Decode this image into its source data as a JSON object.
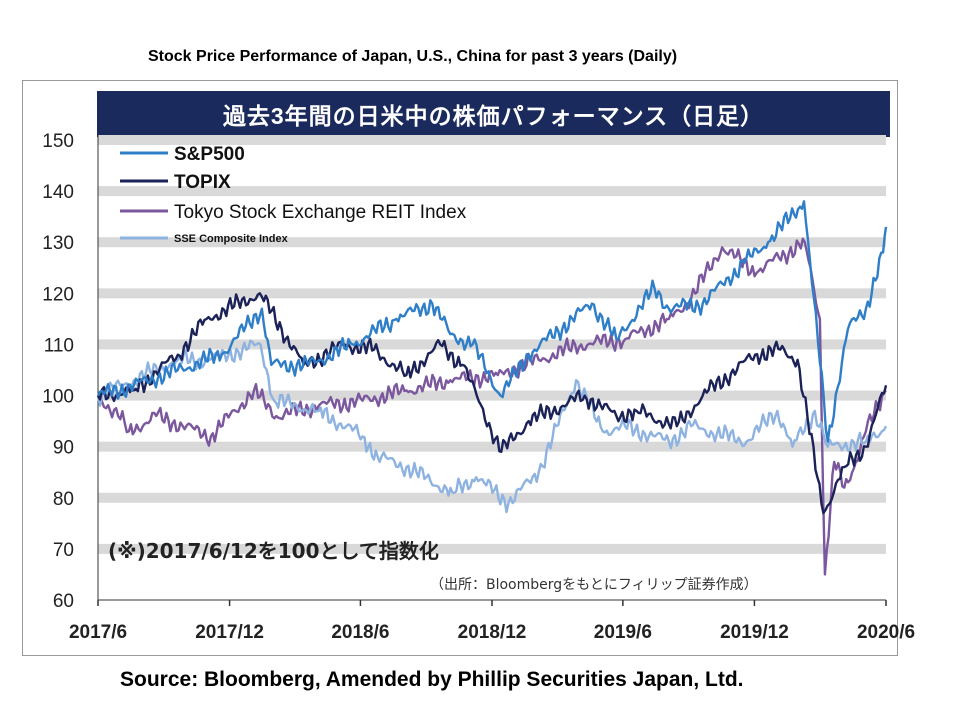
{
  "page": {
    "top_title": "Stock Price Performance of Japan, U.S., China for past 3 years (Daily)",
    "banner_title": "過去3年間の日米中の株価パフォーマンス（日足）",
    "source": "Source: Bloomberg, Amended by Phillip Securities Japan, Ltd."
  },
  "chart_data": {
    "type": "line",
    "title": "過去3年間の日米中の株価パフォーマンス（日足）",
    "note_base": "(※)2017/6/12を100として指数化",
    "note_source": "（出所：Bloombergをもとにフィリップ証券作成）",
    "x_ticks": [
      "2017/6",
      "2017/12",
      "2018/6",
      "2018/12",
      "2019/6",
      "2019/12",
      "2020/6"
    ],
    "x_range": [
      "2017-06-12",
      "2020-06-12"
    ],
    "ylim": [
      60,
      150
    ],
    "y_ticks": [
      60,
      70,
      80,
      90,
      100,
      110,
      120,
      130,
      140,
      150
    ],
    "grid": "horizontal gray bands",
    "legend": "top-left",
    "series": [
      {
        "name": "S&P500",
        "color": "#2f7ec8",
        "points": [
          [
            "2017-06-12",
            100
          ],
          [
            "2017-08-01",
            102
          ],
          [
            "2017-10-01",
            105
          ],
          [
            "2017-12-01",
            108
          ],
          [
            "2018-01-26",
            117
          ],
          [
            "2018-02-08",
            106
          ],
          [
            "2018-04-01",
            106
          ],
          [
            "2018-06-01",
            110
          ],
          [
            "2018-08-01",
            115
          ],
          [
            "2018-09-20",
            118
          ],
          [
            "2018-10-15",
            112
          ],
          [
            "2018-11-15",
            110
          ],
          [
            "2018-12-24",
            100
          ],
          [
            "2019-02-01",
            108
          ],
          [
            "2019-04-30",
            118
          ],
          [
            "2019-06-03",
            111
          ],
          [
            "2019-07-26",
            121
          ],
          [
            "2019-08-15",
            117
          ],
          [
            "2019-10-01",
            118
          ],
          [
            "2019-11-28",
            126
          ],
          [
            "2019-12-31",
            130
          ],
          [
            "2020-02-19",
            138
          ],
          [
            "2020-03-23",
            91
          ],
          [
            "2020-04-20",
            113
          ],
          [
            "2020-05-15",
            117
          ],
          [
            "2020-06-08",
            128
          ],
          [
            "2020-06-12",
            133
          ]
        ]
      },
      {
        "name": "TOPIX",
        "color": "#1b2257",
        "points": [
          [
            "2017-06-12",
            100
          ],
          [
            "2017-08-01",
            101
          ],
          [
            "2017-10-01",
            108
          ],
          [
            "2017-11-10",
            115
          ],
          [
            "2018-01-23",
            120
          ],
          [
            "2018-03-25",
            106
          ],
          [
            "2018-05-21",
            110
          ],
          [
            "2018-07-01",
            109
          ],
          [
            "2018-08-15",
            104
          ],
          [
            "2018-10-01",
            110
          ],
          [
            "2018-11-01",
            106
          ],
          [
            "2018-12-25",
            89
          ],
          [
            "2019-02-01",
            95
          ],
          [
            "2019-04-20",
            100
          ],
          [
            "2019-06-03",
            96
          ],
          [
            "2019-07-01",
            97
          ],
          [
            "2019-08-26",
            94
          ],
          [
            "2019-10-01",
            100
          ],
          [
            "2019-12-13",
            108
          ],
          [
            "2020-01-17",
            109
          ],
          [
            "2020-02-10",
            107
          ],
          [
            "2020-03-17",
            77
          ],
          [
            "2020-04-15",
            86
          ],
          [
            "2020-05-15",
            90
          ],
          [
            "2020-06-12",
            102
          ]
        ]
      },
      {
        "name": "Tokyo Stock Exchange REIT Index",
        "color": "#7b579d",
        "points": [
          [
            "2017-06-12",
            100
          ],
          [
            "2017-07-10",
            96
          ],
          [
            "2017-07-25",
            93
          ],
          [
            "2017-09-01",
            96
          ],
          [
            "2017-11-16",
            92
          ],
          [
            "2018-01-15",
            101
          ],
          [
            "2018-02-15",
            96
          ],
          [
            "2018-04-15",
            98
          ],
          [
            "2018-06-15",
            99
          ],
          [
            "2018-08-15",
            101
          ],
          [
            "2018-10-15",
            103
          ],
          [
            "2018-12-20",
            104
          ],
          [
            "2019-02-15",
            107
          ],
          [
            "2019-04-15",
            110
          ],
          [
            "2019-06-15",
            111
          ],
          [
            "2019-08-15",
            115
          ],
          [
            "2019-09-15",
            119
          ],
          [
            "2019-10-28",
            129
          ],
          [
            "2019-12-15",
            124
          ],
          [
            "2020-01-15",
            127
          ],
          [
            "2020-02-20",
            130
          ],
          [
            "2020-03-12",
            115
          ],
          [
            "2020-03-19",
            65
          ],
          [
            "2020-04-01",
            87
          ],
          [
            "2020-04-15",
            82
          ],
          [
            "2020-05-01",
            87
          ],
          [
            "2020-05-15",
            93
          ],
          [
            "2020-06-12",
            101
          ]
        ]
      },
      {
        "name": "SSE Composite Index",
        "color": "#8fb3e0",
        "points": [
          [
            "2017-06-12",
            100
          ],
          [
            "2017-08-01",
            103
          ],
          [
            "2017-10-01",
            107
          ],
          [
            "2017-11-15",
            107
          ],
          [
            "2018-01-24",
            110
          ],
          [
            "2018-02-12",
            99
          ],
          [
            "2018-04-15",
            97
          ],
          [
            "2018-06-15",
            92
          ],
          [
            "2018-07-06",
            88
          ],
          [
            "2018-08-15",
            86
          ],
          [
            "2018-10-18",
            81
          ],
          [
            "2018-11-20",
            84
          ],
          [
            "2019-01-04",
            79
          ],
          [
            "2019-02-15",
            85
          ],
          [
            "2019-04-08",
            103
          ],
          [
            "2019-05-15",
            93
          ],
          [
            "2019-06-15",
            94
          ],
          [
            "2019-08-15",
            91
          ],
          [
            "2019-09-15",
            94
          ],
          [
            "2019-12-01",
            91
          ],
          [
            "2020-01-13",
            97
          ],
          [
            "2020-02-03",
            90
          ],
          [
            "2020-03-05",
            97
          ],
          [
            "2020-03-23",
            90
          ],
          [
            "2020-05-15",
            91
          ],
          [
            "2020-06-12",
            94
          ]
        ]
      }
    ]
  }
}
